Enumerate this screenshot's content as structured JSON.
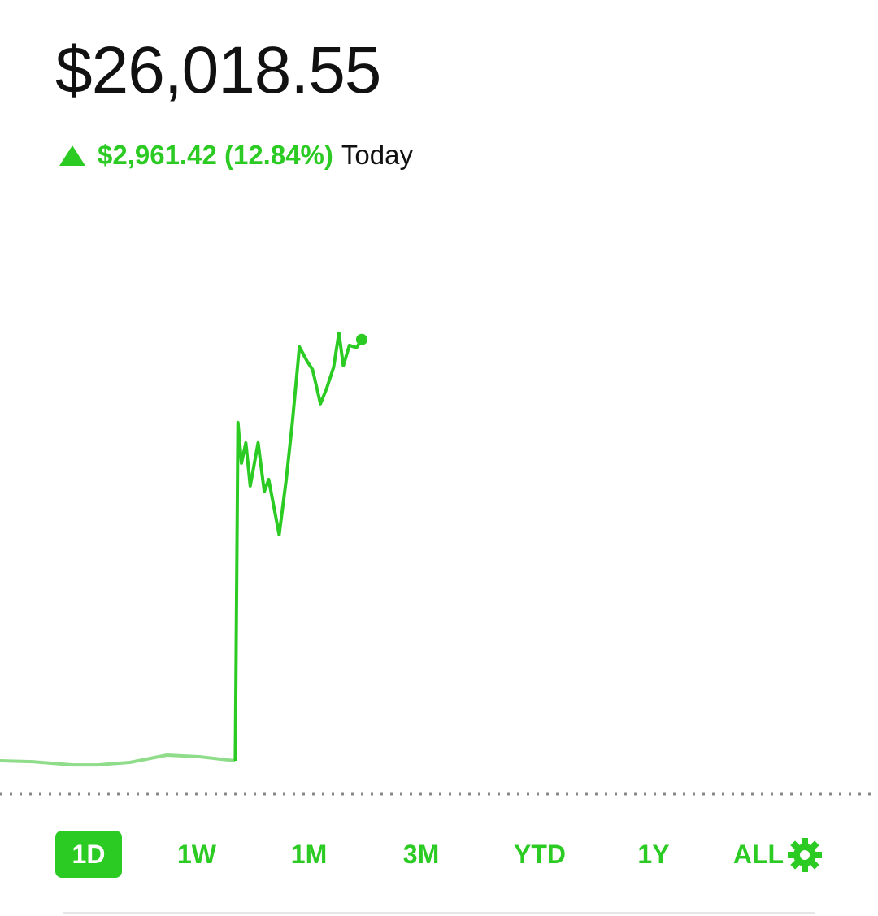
{
  "header": {
    "value": "$26,018.55",
    "change": "$2,961.42 (12.84%)",
    "period": "Today"
  },
  "chart_data": {
    "type": "line",
    "xlim": [
      0,
      100
    ],
    "ylim": [
      22920,
      26120
    ],
    "series": [
      {
        "color": "#8fdc8a",
        "x": [
          0,
          3.7,
          8.3,
          11.1,
          14.8,
          19.0,
          22.7,
          26.8
        ],
        "values": [
          23057,
          23051,
          23028,
          23028,
          23046,
          23097,
          23086,
          23057
        ]
      },
      {
        "color": "#2ccb24",
        "x": [
          26.8,
          27.1,
          27.5,
          28.0,
          28.5,
          29.4,
          30.1,
          30.6,
          31.8,
          32.6,
          33.3,
          34.1,
          35.0,
          35.6,
          36.5,
          37.2,
          38.0,
          38.6,
          39.1,
          39.8,
          40.6,
          41.2
        ],
        "values": [
          23057,
          25435,
          25149,
          25292,
          24989,
          25292,
          24949,
          25035,
          24646,
          25035,
          25435,
          25967,
          25864,
          25807,
          25567,
          25675,
          25824,
          26064,
          25835,
          25978,
          25961,
          26018.55
        ]
      }
    ]
  },
  "ranges": [
    "1D",
    "1W",
    "1M",
    "3M",
    "YTD",
    "1Y",
    "ALL"
  ]
}
